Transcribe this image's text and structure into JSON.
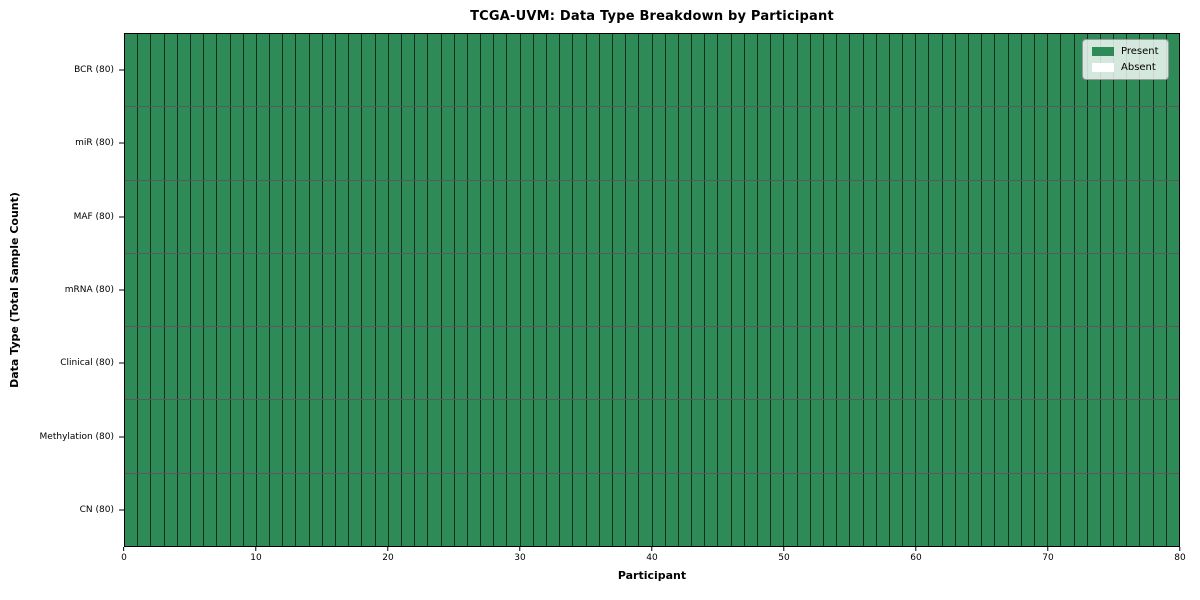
{
  "figure": {
    "title": "TCGA-UVM: Data Type Breakdown by Participant"
  },
  "axes": {
    "xlabel": "Participant",
    "ylabel": "Data Type (Total Sample Count)",
    "x_ticks": [
      0,
      10,
      20,
      30,
      40,
      50,
      60,
      70,
      80
    ],
    "x_range": [
      0,
      80
    ]
  },
  "legend": {
    "entries": [
      {
        "label": "Present",
        "color": "#2E8B57"
      },
      {
        "label": "Absent",
        "color": "#FFFFFF"
      }
    ],
    "position": "upper right"
  },
  "chart_data": {
    "type": "heatmap",
    "title": "TCGA-UVM: Data Type Breakdown by Participant",
    "xlabel": "Participant",
    "ylabel": "Data Type (Total Sample Count)",
    "x_range": [
      0,
      80
    ],
    "x_ticks": [
      0,
      10,
      20,
      30,
      40,
      50,
      60,
      70,
      80
    ],
    "participants": 80,
    "rows": [
      {
        "label": "BCR (80)",
        "data_type": "BCR",
        "total_samples": 80,
        "present_count": 80,
        "absent_count": 0
      },
      {
        "label": "miR (80)",
        "data_type": "miR",
        "total_samples": 80,
        "present_count": 80,
        "absent_count": 0
      },
      {
        "label": "MAF (80)",
        "data_type": "MAF",
        "total_samples": 80,
        "present_count": 80,
        "absent_count": 0
      },
      {
        "label": "mRNA (80)",
        "data_type": "mRNA",
        "total_samples": 80,
        "present_count": 80,
        "absent_count": 0
      },
      {
        "label": "Clinical (80)",
        "data_type": "Clinical",
        "total_samples": 80,
        "present_count": 80,
        "absent_count": 0
      },
      {
        "label": "Methylation (80)",
        "data_type": "Methylation",
        "total_samples": 80,
        "present_count": 80,
        "absent_count": 0
      },
      {
        "label": "CN (80)",
        "data_type": "CN",
        "total_samples": 80,
        "present_count": 80,
        "absent_count": 0
      }
    ],
    "all_cells_present": true,
    "cell_present_color": "#2E8B57",
    "cell_absent_color": "#FFFFFF",
    "cell_edge_color": "rgba(0,0,0,0.65)",
    "legend_entries": [
      "Present",
      "Absent"
    ],
    "legend_position": "upper right",
    "grid": "cell-borders"
  }
}
